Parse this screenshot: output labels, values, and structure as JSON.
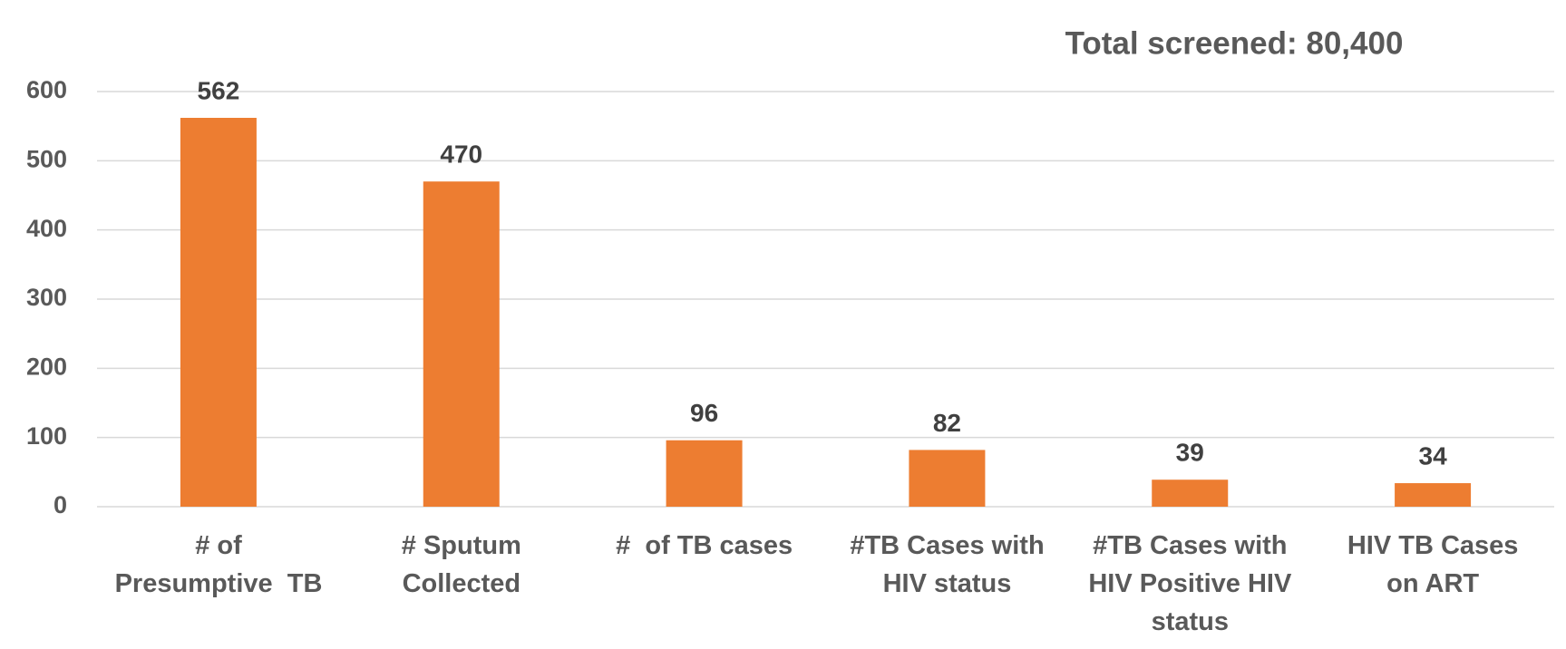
{
  "chart_data": {
    "type": "bar",
    "title": "Total screened: 80,400",
    "categories": [
      "# of\nPresumptive  TB",
      "# Sputum\nCollected",
      "#  of TB cases",
      "#TB Cases with\nHIV status",
      "#TB Cases with\nHIV Positive HIV\nstatus",
      "HIV TB Cases\non ART"
    ],
    "values": [
      562,
      470,
      96,
      82,
      39,
      34
    ],
    "color": "#ED7D31",
    "ylim": [
      0,
      600
    ],
    "yticks": [
      0,
      100,
      200,
      300,
      400,
      500,
      600
    ],
    "grid": true
  }
}
